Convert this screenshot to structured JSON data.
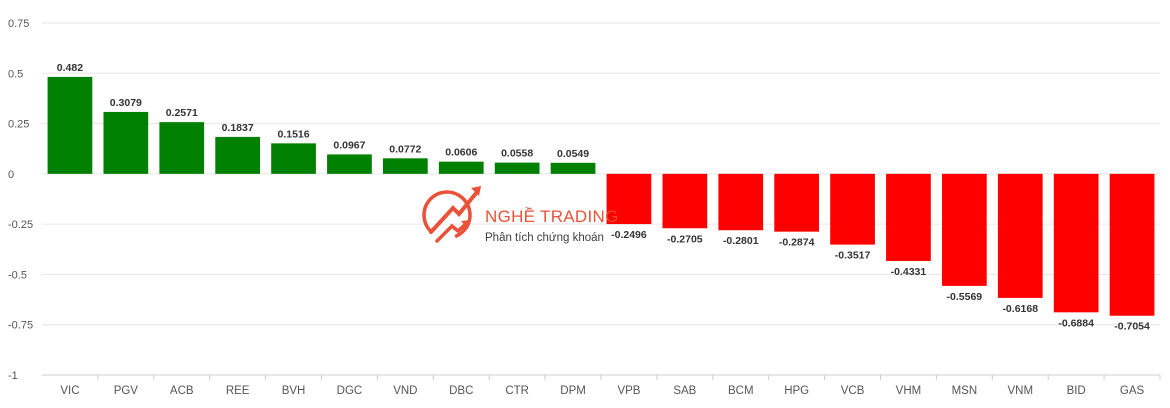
{
  "chart_data": {
    "type": "bar",
    "title": "",
    "xlabel": "",
    "ylabel": "",
    "ylim": [
      -1,
      0.75
    ],
    "yticks": [
      0.75,
      0.5,
      0.25,
      0,
      -0.25,
      -0.5,
      -0.75,
      -1
    ],
    "ytick_labels": [
      "0.75",
      "0.5",
      "0.25",
      "0",
      "-0.25",
      "-0.5",
      "-0.75",
      "-1"
    ],
    "grid": true,
    "categories": [
      "VIC",
      "PGV",
      "ACB",
      "REE",
      "BVH",
      "DGC",
      "VND",
      "DBC",
      "CTR",
      "DPM",
      "VPB",
      "SAB",
      "BCM",
      "HPG",
      "VCB",
      "VHM",
      "MSN",
      "VNM",
      "BID",
      "GAS"
    ],
    "values": [
      0.482,
      0.3079,
      0.2571,
      0.1837,
      0.1516,
      0.0967,
      0.0772,
      0.0606,
      0.0558,
      0.0549,
      -0.2496,
      -0.2705,
      -0.2801,
      -0.2874,
      -0.3517,
      -0.4331,
      -0.5569,
      -0.6168,
      -0.6884,
      -0.7054
    ],
    "value_labels": [
      "0.482",
      "0.3079",
      "0.2571",
      "0.1837",
      "0.1516",
      "0.0967",
      "0.0772",
      "0.0606",
      "0.0558",
      "0.0549",
      "-0.2496",
      "-0.2705",
      "-0.2801",
      "-0.2874",
      "-0.3517",
      "-0.4331",
      "-0.5569",
      "-0.6168",
      "-0.6884",
      "-0.7054"
    ],
    "colors": {
      "positive": "#008000",
      "negative": "#ff0000",
      "grid": "#e6e6e6",
      "axis": "#cccccc"
    }
  },
  "watermark": {
    "brand": "NGHỀ TRADING",
    "tagline": "Phân tích chứng khoán",
    "color": "#e8492f"
  }
}
